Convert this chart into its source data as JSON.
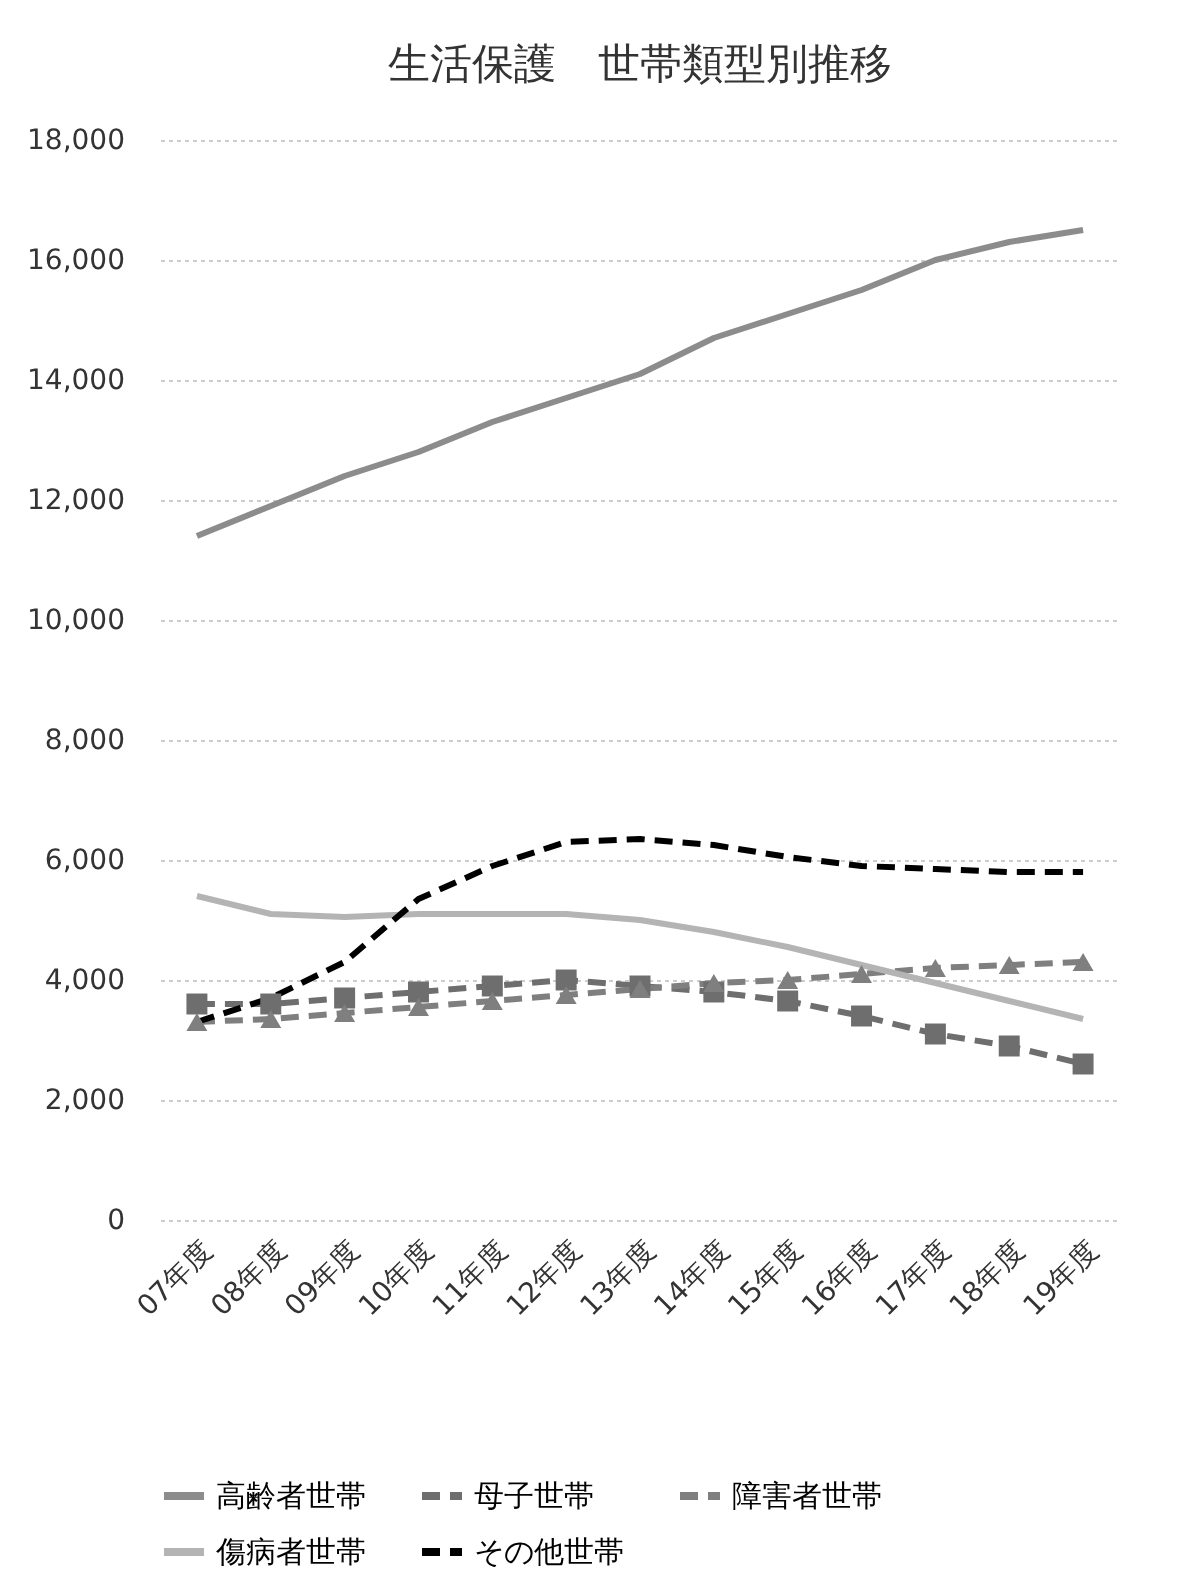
{
  "chart_data": {
    "type": "line",
    "title": "生活保護　世帯類型別推移",
    "categories": [
      "07年度",
      "08年度",
      "09年度",
      "10年度",
      "11年度",
      "12年度",
      "13年度",
      "14年度",
      "15年度",
      "16年度",
      "17年度",
      "18年度",
      "19年度"
    ],
    "series": [
      {
        "name": "高齢者世帯",
        "color": "#8c8c8c",
        "line_style": "solid",
        "marker": "none",
        "values": [
          11400,
          11900,
          12400,
          12800,
          13300,
          13700,
          14100,
          14700,
          15100,
          15500,
          16000,
          16300,
          16500
        ]
      },
      {
        "name": "母子世帯",
        "color": "#6e6e6e",
        "line_style": "dashed",
        "marker": "square",
        "values": [
          3600,
          3600,
          3700,
          3800,
          3900,
          4000,
          3900,
          3800,
          3650,
          3400,
          3100,
          2900,
          2600
        ]
      },
      {
        "name": "障害者世帯",
        "color": "#7f7f7f",
        "line_style": "dashed",
        "marker": "triangle",
        "values": [
          3300,
          3350,
          3450,
          3550,
          3650,
          3750,
          3850,
          3950,
          4000,
          4100,
          4200,
          4250,
          4300
        ]
      },
      {
        "name": "傷病者世帯",
        "color": "#b4b4b4",
        "line_style": "solid",
        "marker": "none",
        "values": [
          5400,
          5100,
          5050,
          5100,
          5100,
          5100,
          5000,
          4800,
          4550,
          4250,
          3950,
          3650,
          3350
        ]
      },
      {
        "name": "その他世帯",
        "color": "#000000",
        "line_style": "dashed",
        "marker": "none",
        "values": [
          3300,
          3700,
          4300,
          5350,
          5900,
          6300,
          6350,
          6250,
          6050,
          5900,
          5850,
          5800,
          5800
        ]
      }
    ],
    "ylim": [
      0,
      18000
    ],
    "yticks": [
      0,
      {
        "value": 2000,
        "label": "2,000"
      },
      {
        "value": 4000,
        "label": "4,000"
      },
      {
        "value": 6000,
        "label": "6,000"
      },
      {
        "value": 8000,
        "label": "8,000"
      },
      {
        "value": 10000,
        "label": "10,000"
      },
      {
        "value": 12000,
        "label": "12,000"
      },
      {
        "value": 14000,
        "label": "14,000"
      },
      {
        "value": 16000,
        "label": "16,000"
      },
      {
        "value": 18000,
        "label": "18,000"
      }
    ],
    "grid": "y",
    "legend": "bottom"
  }
}
